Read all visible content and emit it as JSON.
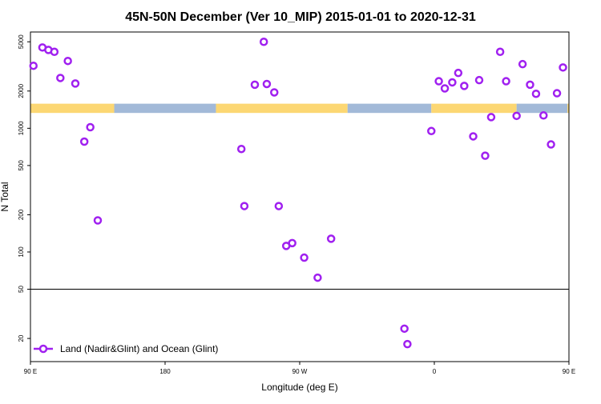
{
  "chart_data": {
    "type": "scatter",
    "title": "45N-50N December (Ver 10_MIP)   2015-01-01 to 2020-12-31",
    "xlabel": "Longitude (deg E)",
    "ylabel": "N Total",
    "yscale": "log",
    "ylim": [
      13,
      6000
    ],
    "xlim": [
      90,
      450
    ],
    "x_ticks": [
      {
        "value": 90,
        "label": "90 E"
      },
      {
        "value": 180,
        "label": "180"
      },
      {
        "value": 270,
        "label": "90 W"
      },
      {
        "value": 360,
        "label": "0"
      },
      {
        "value": 450,
        "label": "90 E"
      },
      {
        "value": 540,
        "label": "180"
      }
    ],
    "y_ticks": [
      {
        "value": 20,
        "label": "20"
      },
      {
        "value": 50,
        "label": "50"
      },
      {
        "value": 100,
        "label": "100"
      },
      {
        "value": 200,
        "label": "200"
      },
      {
        "value": 500,
        "label": "500"
      },
      {
        "value": 1000,
        "label": "1000"
      },
      {
        "value": 2000,
        "label": "2000"
      },
      {
        "value": 5000,
        "label": "5000"
      }
    ],
    "reference_line_y": 50,
    "marker_color": "#a020f0",
    "land_color": "#fcd773",
    "ocean_color": "#a2b9d8",
    "band_y_range": [
      1330,
      1580
    ],
    "surface_band": [
      {
        "from": 90,
        "to": 146,
        "surface": "land"
      },
      {
        "from": 146,
        "to": 214,
        "surface": "ocean"
      },
      {
        "from": 214,
        "to": 302,
        "surface": "land"
      },
      {
        "from": 302,
        "to": 358,
        "surface": "ocean"
      },
      {
        "from": 358,
        "to": 415,
        "surface": "land"
      },
      {
        "from": 415,
        "to": 449,
        "surface": "ocean"
      },
      {
        "from": 449,
        "to": 506,
        "surface": "land"
      },
      {
        "from": 506,
        "to": 540,
        "surface": "ocean"
      }
    ],
    "series": [
      {
        "name": "Land (Nadir&Glint) and Ocean (Glint)",
        "points": [
          [
            92,
            3200
          ],
          [
            98,
            4500
          ],
          [
            102,
            4300
          ],
          [
            106,
            4150
          ],
          [
            110,
            2550
          ],
          [
            115,
            3500
          ],
          [
            120,
            2300
          ],
          [
            126,
            780
          ],
          [
            130,
            1020
          ],
          [
            135,
            180
          ],
          [
            231,
            680
          ],
          [
            233,
            235
          ],
          [
            240,
            2250
          ],
          [
            246,
            5000
          ],
          [
            248,
            2280
          ],
          [
            253,
            1950
          ],
          [
            256,
            235
          ],
          [
            261,
            112
          ],
          [
            265,
            118
          ],
          [
            273,
            90
          ],
          [
            282,
            62
          ],
          [
            291,
            128
          ],
          [
            340,
            24
          ],
          [
            342,
            18
          ],
          [
            358,
            950
          ],
          [
            363,
            2400
          ],
          [
            367,
            2100
          ],
          [
            372,
            2350
          ],
          [
            376,
            2800
          ],
          [
            380,
            2200
          ],
          [
            386,
            860
          ],
          [
            390,
            2450
          ],
          [
            394,
            600
          ],
          [
            398,
            1230
          ],
          [
            404,
            4150
          ],
          [
            408,
            2400
          ],
          [
            415,
            1260
          ],
          [
            419,
            3300
          ],
          [
            424,
            2250
          ],
          [
            428,
            1900
          ],
          [
            433,
            1270
          ],
          [
            438,
            740
          ],
          [
            442,
            1920
          ],
          [
            446,
            3100
          ],
          [
            452,
            4500
          ],
          [
            457,
            4300
          ],
          [
            462,
            4150
          ],
          [
            467,
            2550
          ],
          [
            472,
            3500
          ],
          [
            477,
            2300
          ],
          [
            483,
            780
          ],
          [
            488,
            1020
          ],
          [
            492,
            180
          ]
        ]
      }
    ],
    "legend": {
      "placement": "bottom-left",
      "label": "Land (Nadir&Glint) and Ocean (Glint)"
    }
  }
}
